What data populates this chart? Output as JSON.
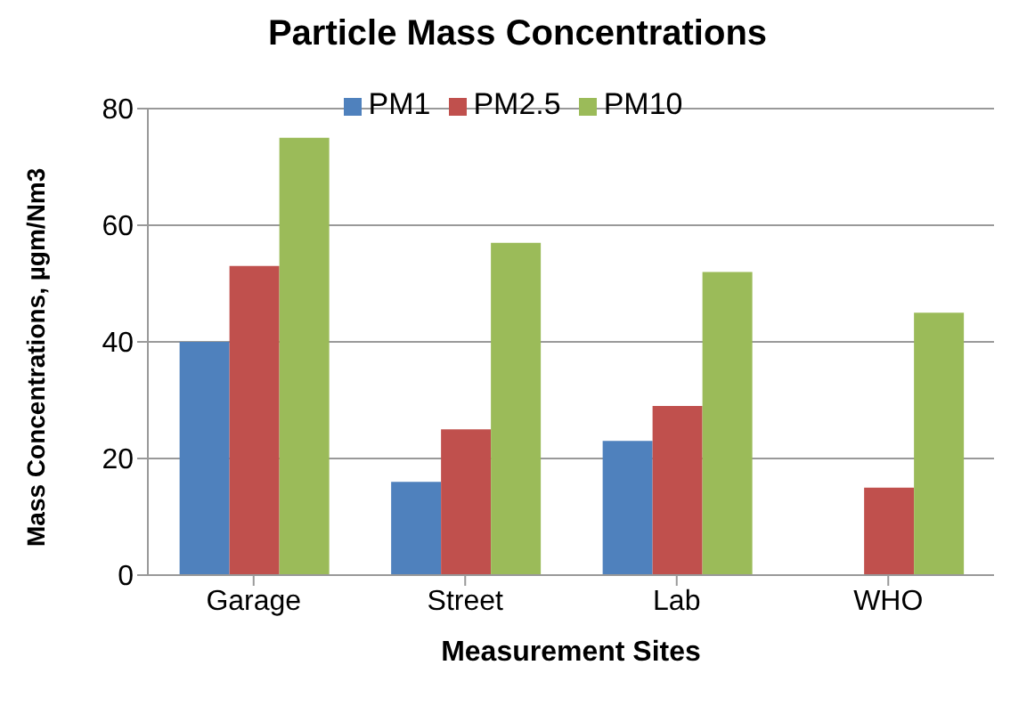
{
  "chart_data": {
    "type": "bar",
    "title": "Particle Mass Concentrations",
    "xlabel": "Measurement Sites",
    "ylabel": "Mass Concentrations, µgm/Nm3",
    "categories": [
      "Garage",
      "Street",
      "Lab",
      "WHO"
    ],
    "series": [
      {
        "name": "PM1",
        "color": "#4f81bd",
        "values": [
          40,
          16,
          23,
          null
        ]
      },
      {
        "name": "PM2.5",
        "color": "#c0504d",
        "values": [
          53,
          25,
          29,
          15
        ]
      },
      {
        "name": "PM10",
        "color": "#9bbb59",
        "values": [
          75,
          57,
          52,
          45
        ]
      }
    ],
    "ylim": [
      0,
      80
    ],
    "yticks": [
      0,
      20,
      40,
      60,
      80
    ],
    "grid": "y",
    "legend": "top"
  }
}
